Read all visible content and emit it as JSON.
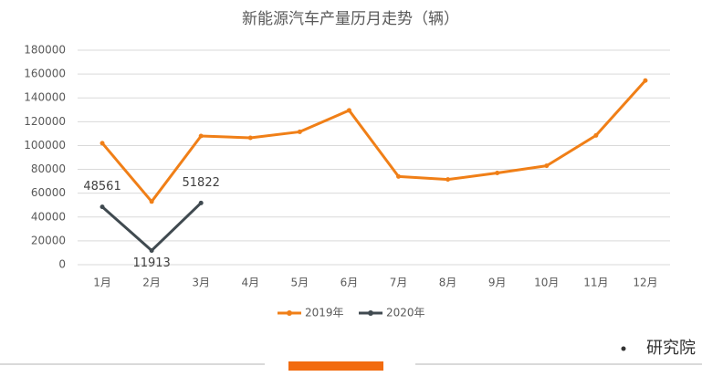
{
  "chart_data": {
    "type": "line",
    "title": "新能源汽车产量历月走势（辆）",
    "categories": [
      "1月",
      "2月",
      "3月",
      "4月",
      "5月",
      "6月",
      "7月",
      "8月",
      "9月",
      "10月",
      "11月",
      "12月"
    ],
    "series": [
      {
        "name": "2019年",
        "color": "#f07f17",
        "values": [
          102000,
          53000,
          108000,
          106500,
          111500,
          129500,
          74000,
          71500,
          77000,
          83000,
          108500,
          154500
        ]
      },
      {
        "name": "2020年",
        "color": "#404a50",
        "values": [
          48561,
          11913,
          51822,
          null,
          null,
          null,
          null,
          null,
          null,
          null,
          null,
          null
        ],
        "data_labels": true
      }
    ],
    "ylim": [
      0,
      180000
    ],
    "yticks": [
      0,
      20000,
      40000,
      60000,
      80000,
      100000,
      120000,
      140000,
      160000,
      180000
    ],
    "grid": true,
    "legend": "bottom"
  },
  "brand": "研究院"
}
